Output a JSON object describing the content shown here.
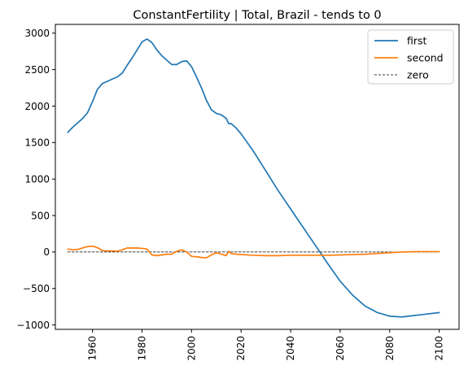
{
  "chart_data": {
    "type": "line",
    "title": "ConstantFertility | Total, Brazil  - tends to 0",
    "xlabel": "",
    "ylabel": "",
    "xlim": [
      1945,
      2108
    ],
    "ylim": [
      -1060,
      3120
    ],
    "xticks": [
      1960,
      1980,
      2000,
      2020,
      2040,
      2060,
      2080,
      2100
    ],
    "yticks": [
      -1000,
      -500,
      0,
      500,
      1000,
      1500,
      2000,
      2500,
      3000
    ],
    "grid": false,
    "legend_position": "top-right",
    "series": [
      {
        "name": "first",
        "color": "#1f77b4",
        "style": "solid",
        "x": [
          1950,
          1952,
          1954,
          1956,
          1958,
          1960,
          1962,
          1964,
          1966,
          1968,
          1970,
          1972,
          1974,
          1976,
          1978,
          1980,
          1982,
          1984,
          1986,
          1988,
          1990,
          1992,
          1994,
          1996,
          1998,
          2000,
          2002,
          2004,
          2006,
          2008,
          2010,
          2012,
          2014,
          2015,
          2016,
          2018,
          2020,
          2025,
          2030,
          2035,
          2040,
          2045,
          2050,
          2055,
          2060,
          2065,
          2070,
          2075,
          2080,
          2085,
          2090,
          2095,
          2100
        ],
        "values": [
          1640,
          1710,
          1770,
          1830,
          1910,
          2060,
          2230,
          2310,
          2340,
          2370,
          2400,
          2450,
          2560,
          2660,
          2770,
          2880,
          2920,
          2870,
          2770,
          2690,
          2630,
          2570,
          2570,
          2610,
          2620,
          2540,
          2400,
          2250,
          2080,
          1950,
          1900,
          1880,
          1830,
          1760,
          1760,
          1700,
          1620,
          1380,
          1110,
          840,
          590,
          340,
          90,
          -160,
          -400,
          -590,
          -740,
          -830,
          -880,
          -890,
          -870,
          -850,
          -830
        ]
      },
      {
        "name": "second",
        "color": "#ff7f0e",
        "style": "solid",
        "x": [
          1950,
          1952,
          1954,
          1956,
          1958,
          1960,
          1962,
          1964,
          1966,
          1968,
          1970,
          1972,
          1974,
          1976,
          1978,
          1980,
          1982,
          1984,
          1986,
          1988,
          1990,
          1992,
          1994,
          1996,
          1998,
          2000,
          2002,
          2004,
          2006,
          2008,
          2010,
          2012,
          2014,
          2015,
          2016,
          2018,
          2020,
          2025,
          2030,
          2035,
          2040,
          2045,
          2050,
          2055,
          2060,
          2065,
          2070,
          2075,
          2080,
          2085,
          2090,
          2095,
          2100
        ],
        "values": [
          40,
          30,
          35,
          55,
          75,
          80,
          60,
          20,
          15,
          15,
          10,
          30,
          55,
          55,
          55,
          50,
          40,
          -40,
          -50,
          -40,
          -30,
          -30,
          10,
          30,
          0,
          -60,
          -65,
          -75,
          -80,
          -40,
          -10,
          -30,
          -50,
          10,
          -20,
          -30,
          -35,
          -45,
          -50,
          -50,
          -45,
          -45,
          -45,
          -45,
          -40,
          -35,
          -30,
          -20,
          -10,
          0,
          5,
          5,
          5
        ]
      },
      {
        "name": "zero",
        "color": "#000000",
        "style": "dashed",
        "x": [
          1950,
          2100
        ],
        "values": [
          0,
          0
        ]
      }
    ]
  }
}
